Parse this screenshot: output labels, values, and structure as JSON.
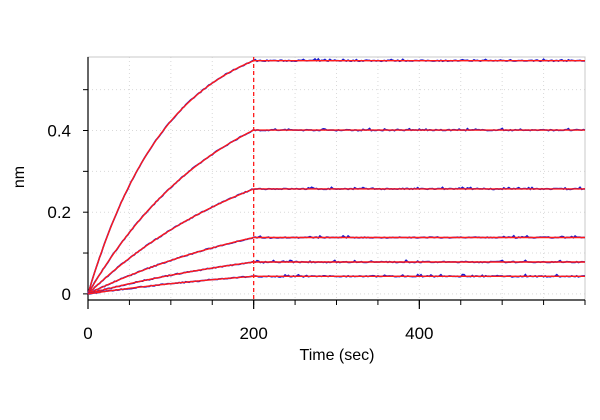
{
  "chart_data": {
    "type": "line",
    "title": "",
    "xlabel": "Time (sec)",
    "ylabel": "nm",
    "xlim": [
      0,
      600
    ],
    "ylim": [
      -0.015,
      0.58
    ],
    "xticks": [
      0,
      200,
      400
    ],
    "yticks": [
      0,
      0.2,
      0.4
    ],
    "xticks_minor": [
      0,
      50,
      100,
      150,
      200,
      250,
      300,
      350,
      400,
      450,
      500,
      550,
      600
    ],
    "yticks_minor": [
      0,
      0.1,
      0.2,
      0.3,
      0.4,
      0.5
    ],
    "grid": true,
    "legend": "none",
    "association_end_x": 200,
    "colors": {
      "measured": "#1a1acc",
      "fit": "#ff1a1a",
      "marker_line": "#ff1a1a",
      "grid": "#d9d9d9"
    },
    "series": [
      {
        "plateau": 0.571,
        "k": 0.0105
      },
      {
        "plateau": 0.401,
        "k": 0.0062
      },
      {
        "plateau": 0.257,
        "k": 0.0045
      },
      {
        "plateau": 0.138,
        "k": 0.0038
      },
      {
        "plateau": 0.078,
        "k": 0.0035
      },
      {
        "plateau": 0.043,
        "k": 0.0033
      }
    ]
  }
}
